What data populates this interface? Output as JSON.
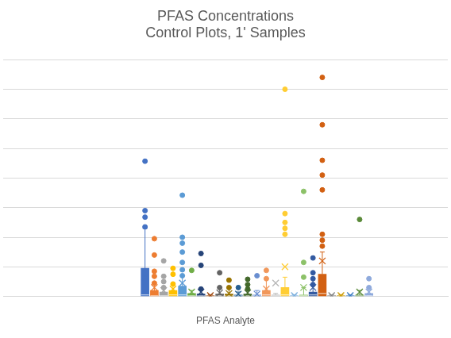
{
  "chart_data": {
    "type": "box",
    "title": [
      "PFAS Concentrations",
      "Control Plots, 1' Samples"
    ],
    "x_label": "PFAS Analyte",
    "categories": [
      null,
      null,
      null,
      null,
      null,
      null,
      null,
      null,
      null,
      null,
      null,
      null,
      null,
      null,
      null,
      null,
      null,
      null,
      null,
      null,
      null,
      null,
      null,
      null,
      null
    ],
    "ylim": [
      0,
      8
    ],
    "yticks": [
      0,
      1,
      2,
      3,
      4,
      5,
      6,
      7,
      8
    ],
    "grid": true,
    "tick_labels": false,
    "boxes": [
      {
        "color": "#4472C4",
        "q1": 0,
        "median": 0.05,
        "q3": 0.95,
        "whisker_high": 2.3,
        "mean": 0.65,
        "points": [
          4.57,
          2.9,
          2.68,
          2.35
        ]
      },
      {
        "color": "#ED7D31",
        "q1": 0,
        "median": 0.02,
        "q3": 0.2,
        "whisker_high": 0.45,
        "mean": 0.3,
        "points": [
          1.95,
          1.4,
          0.85,
          0.68,
          0.45
        ]
      },
      {
        "color": "#A5A5A5",
        "q1": 0,
        "median": 0.02,
        "q3": 0.15,
        "whisker_high": 0.3,
        "mean": 0.2,
        "points": [
          1.2,
          0.68,
          0.5,
          0.3
        ]
      },
      {
        "color": "#FFC000",
        "q1": 0,
        "median": 0.05,
        "q3": 0.2,
        "whisker_high": 0.42,
        "mean": 0.25,
        "points": [
          0.95,
          0.75,
          0.42
        ]
      },
      {
        "color": "#5B9BD5",
        "q1": 0,
        "median": 0.05,
        "q3": 0.35,
        "whisker_high": 0.7,
        "mean": 0.45,
        "points": [
          3.42,
          2.0,
          1.8,
          1.5,
          1.15,
          0.9,
          0.7
        ]
      },
      {
        "color": "#70AD47",
        "q1": 0,
        "median": 0.02,
        "q3": 0.1,
        "whisker_high": 0.2,
        "mean": 0.15,
        "points": [
          0.88
        ]
      },
      {
        "color": "#264478",
        "q1": 0,
        "median": 0.02,
        "q3": 0.08,
        "whisker_high": 0.25,
        "mean": 0.15,
        "points": [
          1.45,
          1.05,
          0.25
        ]
      },
      {
        "color": "#9E480E",
        "q1": 0,
        "median": 0.01,
        "q3": 0.03,
        "whisker_high": 0.05,
        "mean": 0.03,
        "points": []
      },
      {
        "color": "#636363",
        "q1": 0,
        "median": 0.02,
        "q3": 0.08,
        "whisker_high": 0.3,
        "mean": 0.12,
        "points": [
          0.8,
          0.3
        ]
      },
      {
        "color": "#997300",
        "q1": 0,
        "median": 0.02,
        "q3": 0.08,
        "whisker_high": 0.3,
        "mean": 0.1,
        "points": [
          0.55,
          0.3
        ]
      },
      {
        "color": "#255E91",
        "q1": 0,
        "median": 0.02,
        "q3": 0.05,
        "whisker_high": 0.15,
        "mean": 0.08,
        "points": [
          0.3
        ]
      },
      {
        "color": "#43682B",
        "q1": 0,
        "median": 0.02,
        "q3": 0.08,
        "whisker_high": 0.4,
        "mean": 0.12,
        "points": [
          0.58,
          0.4,
          0.25
        ]
      },
      {
        "color": "#698ED0",
        "q1": 0,
        "median": 0.02,
        "q3": 0.05,
        "whisker_high": 0.2,
        "mean": 0.08,
        "points": [
          0.7
        ]
      },
      {
        "color": "#F1975A",
        "q1": 0,
        "median": 0.05,
        "q3": 0.2,
        "whisker_high": 0.6,
        "mean": 0.25,
        "points": [
          0.88,
          0.6
        ]
      },
      {
        "color": "#B7B7B7",
        "q1": 0,
        "median": 0.02,
        "q3": 0.05,
        "whisker_high": 0.1,
        "mean": 0.45,
        "points": []
      },
      {
        "color": "#FFCD33",
        "q1": 0,
        "median": 0.05,
        "q3": 0.3,
        "whisker_high": 0.65,
        "mean": 1.0,
        "points": [
          7.0,
          2.8,
          2.5,
          2.3,
          2.1
        ]
      },
      {
        "color": "#7CAFDD",
        "q1": 0,
        "median": 0.01,
        "q3": 0.03,
        "whisker_high": 0.05,
        "mean": 0.03,
        "points": []
      },
      {
        "color": "#8CC168",
        "q1": 0,
        "median": 0.02,
        "q3": 0.05,
        "whisker_high": 0.3,
        "mean": 0.3,
        "points": [
          3.55,
          1.15,
          0.65
        ]
      },
      {
        "color": "#335AA1",
        "q1": 0,
        "median": 0.05,
        "q3": 0.15,
        "whisker_high": 0.6,
        "mean": 0.3,
        "points": [
          1.3,
          0.8,
          0.6,
          0.4
        ]
      },
      {
        "color": "#D26012",
        "q1": 0,
        "median": 0.1,
        "q3": 0.75,
        "whisker_high": 1.5,
        "mean": 1.2,
        "points": [
          7.4,
          5.8,
          4.6,
          4.1,
          3.6,
          2.1,
          1.9,
          1.7
        ]
      },
      {
        "color": "#848484",
        "q1": 0,
        "median": 0.01,
        "q3": 0.03,
        "whisker_high": 0.05,
        "mean": 0.03,
        "points": []
      },
      {
        "color": "#CC9A00",
        "q1": 0,
        "median": 0.01,
        "q3": 0.03,
        "whisker_high": 0.05,
        "mean": 0.03,
        "points": []
      },
      {
        "color": "#3C7DC4",
        "q1": 0,
        "median": 0.01,
        "q3": 0.03,
        "whisker_high": 0.05,
        "mean": 0.03,
        "points": []
      },
      {
        "color": "#5A8A39",
        "q1": 0,
        "median": 0.02,
        "q3": 0.05,
        "whisker_high": 0.2,
        "mean": 0.15,
        "points": [
          2.6
        ]
      },
      {
        "color": "#8FAADC",
        "q1": 0,
        "median": 0.02,
        "q3": 0.1,
        "whisker_high": 0.3,
        "mean": 0.15,
        "points": [
          0.6,
          0.3
        ]
      }
    ]
  }
}
